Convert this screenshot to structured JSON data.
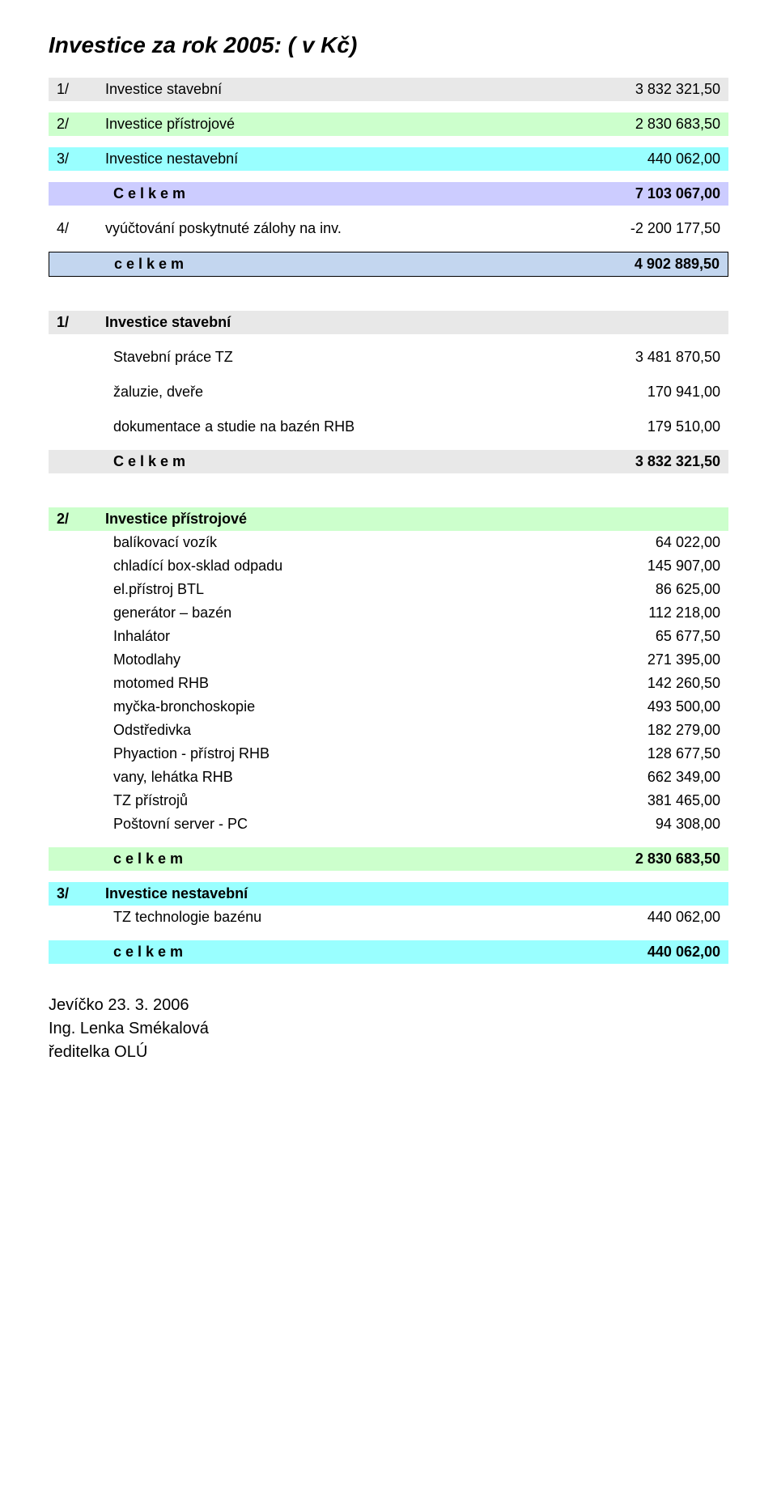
{
  "title": "Investice za rok 2005:  ( v Kč)",
  "summary": [
    {
      "num": "1/",
      "label": "Investice stavební",
      "value": "3 832 321,50",
      "bg": "bg-gray"
    },
    {
      "num": "2/",
      "label": "Investice přístrojové",
      "value": "2 830 683,50",
      "bg": "bg-green"
    },
    {
      "num": "3/",
      "label": "Investice nestavební",
      "value": "440 062,00",
      "bg": "bg-cyan"
    }
  ],
  "summary_total": {
    "label": "C e l k e m",
    "value": "7 103 067,00",
    "bg": "bg-purple"
  },
  "deduction": {
    "num": "4/",
    "label": "vyúčtování poskytnuté zálohy na inv.",
    "value": "-2 200 177,50"
  },
  "grand_total": {
    "label": "c e l k e m",
    "value": "4 902 889,50",
    "bg": "bg-blue-box"
  },
  "section1": {
    "header": {
      "num": "1/",
      "label": "Investice stavební",
      "bg": "bg-gray"
    },
    "items": [
      {
        "label": "Stavební práce TZ",
        "value": "3 481 870,50"
      },
      {
        "label": "žaluzie, dveře",
        "value": "170 941,00"
      },
      {
        "label": "dokumentace a studie na bazén RHB",
        "value": "179 510,00"
      }
    ],
    "total": {
      "label": "C e l k e m",
      "value": "3 832 321,50",
      "bg": "bg-gray"
    }
  },
  "section2": {
    "header": {
      "num": "2/",
      "label": "Investice přístrojové",
      "bg": "bg-green"
    },
    "items": [
      {
        "label": "balíkovací vozík",
        "value": "64 022,00"
      },
      {
        "label": "chladící box-sklad odpadu",
        "value": "145 907,00"
      },
      {
        "label": "el.přístroj BTL",
        "value": "86 625,00"
      },
      {
        "label": "generátor – bazén",
        "value": "112 218,00"
      },
      {
        "label": "Inhalátor",
        "value": "65 677,50"
      },
      {
        "label": "Motodlahy",
        "value": "271 395,00"
      },
      {
        "label": "motomed RHB",
        "value": "142 260,50"
      },
      {
        "label": "myčka-bronchoskopie",
        "value": "493 500,00"
      },
      {
        "label": "Odstředivka",
        "value": "182 279,00"
      },
      {
        "label": "Phyaction - přístroj RHB",
        "value": "128 677,50"
      },
      {
        "label": "vany, lehátka RHB",
        "value": "662 349,00"
      },
      {
        "label": "TZ přístrojů",
        "value": "381 465,00"
      },
      {
        "label": "Poštovní server - PC",
        "value": "94 308,00"
      }
    ],
    "total": {
      "label": "c e l k e m",
      "value": "2 830 683,50",
      "bg": "bg-green"
    }
  },
  "section3": {
    "header": {
      "num": "3/",
      "label": "Investice nestavební",
      "bg": "bg-cyan"
    },
    "items": [
      {
        "label": "TZ technologie bazénu",
        "value": "440 062,00"
      }
    ],
    "total": {
      "label": "c e l k e m",
      "value": "440 062,00",
      "bg": "bg-cyan"
    }
  },
  "footer": {
    "date": "Jevíčko 23. 3. 2006",
    "name": "Ing. Lenka Smékalová",
    "role": "ředitelka OLÚ"
  }
}
